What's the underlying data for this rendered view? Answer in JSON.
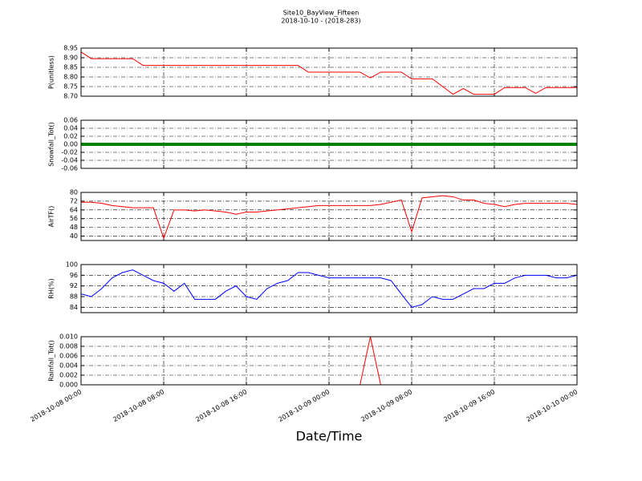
{
  "title": "Site10_BayView_Fifteen",
  "subtitle": "2018-10-10 - (2018-283)",
  "xlabel": "Date/Time",
  "chart_data": [
    {
      "type": "line",
      "ylabel": "P(unitless)",
      "color": "#ff0000",
      "grid": true,
      "xlim": [
        "2018-10-08 00:00",
        "2018-10-10 00:00"
      ],
      "xticks": [
        "2018-10-08 00:00",
        "2018-10-08 08:00",
        "2018-10-08 16:00",
        "2018-10-09 00:00",
        "2018-10-09 08:00",
        "2018-10-09 16:00",
        "2018-10-10 00:00"
      ],
      "ylim": [
        8.7,
        8.95
      ],
      "yticks": [
        {
          "value": 8.7,
          "label": "8.70"
        },
        8.75,
        {
          "value": 8.8,
          "label": "8.80"
        },
        8.85,
        {
          "value": 8.9,
          "label": "8.90"
        },
        8.95
      ],
      "x": [
        "2018-10-08 00:00",
        "2018-10-08 01:00",
        "2018-10-08 02:00",
        "2018-10-08 03:00",
        "2018-10-08 04:00",
        "2018-10-08 05:00",
        "2018-10-08 06:00",
        "2018-10-08 07:00",
        "2018-10-08 08:00",
        "2018-10-08 09:00",
        "2018-10-08 10:00",
        "2018-10-08 11:00",
        "2018-10-08 12:00",
        "2018-10-08 13:00",
        "2018-10-08 14:00",
        "2018-10-08 15:00",
        "2018-10-08 16:00",
        "2018-10-08 17:00",
        "2018-10-08 18:00",
        "2018-10-08 19:00",
        "2018-10-08 20:00",
        "2018-10-08 21:00",
        "2018-10-08 22:00",
        "2018-10-08 23:00",
        "2018-10-09 00:00",
        "2018-10-09 01:00",
        "2018-10-09 02:00",
        "2018-10-09 03:00",
        "2018-10-09 04:00",
        "2018-10-09 05:00",
        "2018-10-09 06:00",
        "2018-10-09 07:00",
        "2018-10-09 08:00",
        "2018-10-09 09:00",
        "2018-10-09 10:00",
        "2018-10-09 11:00",
        "2018-10-09 12:00",
        "2018-10-09 13:00",
        "2018-10-09 14:00",
        "2018-10-09 15:00",
        "2018-10-09 16:00",
        "2018-10-09 17:00",
        "2018-10-09 18:00",
        "2018-10-09 19:00",
        "2018-10-09 20:00",
        "2018-10-09 21:00",
        "2018-10-09 22:00",
        "2018-10-09 23:00",
        "2018-10-10 00:00"
      ],
      "values": [
        8.93,
        8.895,
        8.895,
        8.895,
        8.895,
        8.895,
        8.86,
        8.86,
        8.86,
        8.86,
        8.86,
        8.86,
        8.86,
        8.86,
        8.86,
        8.86,
        8.86,
        8.86,
        8.86,
        8.86,
        8.86,
        8.86,
        8.825,
        8.825,
        8.825,
        8.825,
        8.825,
        8.825,
        8.795,
        8.825,
        8.825,
        8.825,
        8.79,
        8.79,
        8.79,
        8.75,
        8.71,
        8.74,
        8.71,
        8.71,
        8.71,
        8.745,
        8.745,
        8.745,
        8.715,
        8.745,
        8.745,
        8.745,
        8.745
      ]
    },
    {
      "type": "line",
      "ylabel": "Snowfall_Tot()",
      "color": "#008000",
      "grid": true,
      "xlim": [
        "2018-10-08 00:00",
        "2018-10-10 00:00"
      ],
      "xticks": [
        "2018-10-08 00:00",
        "2018-10-08 08:00",
        "2018-10-08 16:00",
        "2018-10-09 00:00",
        "2018-10-09 08:00",
        "2018-10-09 16:00",
        "2018-10-10 00:00"
      ],
      "ylim": [
        -0.06,
        0.06
      ],
      "yticks": [
        -0.06,
        -0.04,
        -0.02,
        {
          "value": 0,
          "label": "0.00"
        },
        0.02,
        0.04,
        0.06
      ],
      "x": [
        "2018-10-08 00:00",
        "2018-10-08 01:00",
        "2018-10-08 02:00",
        "2018-10-08 03:00",
        "2018-10-08 04:00",
        "2018-10-08 05:00",
        "2018-10-08 06:00",
        "2018-10-08 07:00",
        "2018-10-08 08:00",
        "2018-10-08 09:00",
        "2018-10-08 10:00",
        "2018-10-08 11:00",
        "2018-10-08 12:00",
        "2018-10-08 13:00",
        "2018-10-08 14:00",
        "2018-10-08 15:00",
        "2018-10-08 16:00",
        "2018-10-08 17:00",
        "2018-10-08 18:00",
        "2018-10-08 19:00",
        "2018-10-08 20:00",
        "2018-10-08 21:00",
        "2018-10-08 22:00",
        "2018-10-08 23:00",
        "2018-10-09 00:00",
        "2018-10-09 01:00",
        "2018-10-09 02:00",
        "2018-10-09 03:00",
        "2018-10-09 04:00",
        "2018-10-09 05:00",
        "2018-10-09 06:00",
        "2018-10-09 07:00",
        "2018-10-09 08:00",
        "2018-10-09 09:00",
        "2018-10-09 10:00",
        "2018-10-09 11:00",
        "2018-10-09 12:00",
        "2018-10-09 13:00",
        "2018-10-09 14:00",
        "2018-10-09 15:00",
        "2018-10-09 16:00",
        "2018-10-09 17:00",
        "2018-10-09 18:00",
        "2018-10-09 19:00",
        "2018-10-09 20:00",
        "2018-10-09 21:00",
        "2018-10-09 22:00",
        "2018-10-09 23:00",
        "2018-10-10 00:00"
      ],
      "values": [
        0,
        0,
        0,
        0,
        0,
        0,
        0,
        0,
        0,
        0,
        0,
        0,
        0,
        0,
        0,
        0,
        0,
        0,
        0,
        0,
        0,
        0,
        0,
        0,
        0,
        0,
        0,
        0,
        0,
        0,
        0,
        0,
        0,
        0,
        0,
        0,
        0,
        0,
        0,
        0,
        0,
        0,
        0,
        0,
        0,
        0,
        0,
        0,
        0
      ]
    },
    {
      "type": "line",
      "ylabel": "AirTF()",
      "color": "#ff0000",
      "grid": true,
      "xlim": [
        "2018-10-08 00:00",
        "2018-10-10 00:00"
      ],
      "xticks": [
        "2018-10-08 00:00",
        "2018-10-08 08:00",
        "2018-10-08 16:00",
        "2018-10-09 00:00",
        "2018-10-09 08:00",
        "2018-10-09 16:00",
        "2018-10-10 00:00"
      ],
      "ylim": [
        36,
        80
      ],
      "yticks": [
        40,
        48,
        56,
        64,
        72,
        80
      ],
      "x": [
        "2018-10-08 00:00",
        "2018-10-08 01:00",
        "2018-10-08 02:00",
        "2018-10-08 03:00",
        "2018-10-08 04:00",
        "2018-10-08 05:00",
        "2018-10-08 06:00",
        "2018-10-08 07:00",
        "2018-10-08 08:00",
        "2018-10-08 09:00",
        "2018-10-08 10:00",
        "2018-10-08 11:00",
        "2018-10-08 12:00",
        "2018-10-08 13:00",
        "2018-10-08 14:00",
        "2018-10-08 15:00",
        "2018-10-08 16:00",
        "2018-10-08 17:00",
        "2018-10-08 18:00",
        "2018-10-08 19:00",
        "2018-10-08 20:00",
        "2018-10-08 21:00",
        "2018-10-08 22:00",
        "2018-10-08 23:00",
        "2018-10-09 00:00",
        "2018-10-09 01:00",
        "2018-10-09 02:00",
        "2018-10-09 03:00",
        "2018-10-09 04:00",
        "2018-10-09 05:00",
        "2018-10-09 06:00",
        "2018-10-09 07:00",
        "2018-10-09 08:00",
        "2018-10-09 09:00",
        "2018-10-09 10:00",
        "2018-10-09 11:00",
        "2018-10-09 12:00",
        "2018-10-09 13:00",
        "2018-10-09 14:00",
        "2018-10-09 15:00",
        "2018-10-09 16:00",
        "2018-10-09 17:00",
        "2018-10-09 18:00",
        "2018-10-09 19:00",
        "2018-10-09 20:00",
        "2018-10-09 21:00",
        "2018-10-09 22:00",
        "2018-10-09 23:00",
        "2018-10-10 00:00"
      ],
      "values": [
        71,
        71,
        70,
        68,
        67,
        66,
        66,
        66,
        38,
        64,
        64,
        63,
        64,
        63,
        62,
        60,
        62,
        62,
        63,
        64,
        65,
        66,
        67,
        68,
        68,
        68,
        68,
        68,
        68,
        69,
        71,
        73,
        44,
        75,
        76,
        77,
        76,
        73,
        73,
        70,
        69,
        67,
        69,
        70,
        70,
        70,
        70,
        70,
        69
      ]
    },
    {
      "type": "line",
      "ylabel": "RH(%)",
      "color": "#0000ff",
      "grid": true,
      "xlim": [
        "2018-10-08 00:00",
        "2018-10-10 00:00"
      ],
      "xticks": [
        "2018-10-08 00:00",
        "2018-10-08 08:00",
        "2018-10-08 16:00",
        "2018-10-09 00:00",
        "2018-10-09 08:00",
        "2018-10-09 16:00",
        "2018-10-10 00:00"
      ],
      "ylim": [
        82,
        100
      ],
      "yticks": [
        84,
        88,
        92,
        96,
        100
      ],
      "x": [
        "2018-10-08 00:00",
        "2018-10-08 01:00",
        "2018-10-08 02:00",
        "2018-10-08 03:00",
        "2018-10-08 04:00",
        "2018-10-08 05:00",
        "2018-10-08 06:00",
        "2018-10-08 07:00",
        "2018-10-08 08:00",
        "2018-10-08 09:00",
        "2018-10-08 10:00",
        "2018-10-08 11:00",
        "2018-10-08 12:00",
        "2018-10-08 13:00",
        "2018-10-08 14:00",
        "2018-10-08 15:00",
        "2018-10-08 16:00",
        "2018-10-08 17:00",
        "2018-10-08 18:00",
        "2018-10-08 19:00",
        "2018-10-08 20:00",
        "2018-10-08 21:00",
        "2018-10-08 22:00",
        "2018-10-08 23:00",
        "2018-10-09 00:00",
        "2018-10-09 01:00",
        "2018-10-09 02:00",
        "2018-10-09 03:00",
        "2018-10-09 04:00",
        "2018-10-09 05:00",
        "2018-10-09 06:00",
        "2018-10-09 07:00",
        "2018-10-09 08:00",
        "2018-10-09 09:00",
        "2018-10-09 10:00",
        "2018-10-09 11:00",
        "2018-10-09 12:00",
        "2018-10-09 13:00",
        "2018-10-09 14:00",
        "2018-10-09 15:00",
        "2018-10-09 16:00",
        "2018-10-09 17:00",
        "2018-10-09 18:00",
        "2018-10-09 19:00",
        "2018-10-09 20:00",
        "2018-10-09 21:00",
        "2018-10-09 22:00",
        "2018-10-09 23:00",
        "2018-10-10 00:00"
      ],
      "values": [
        89,
        88,
        91,
        95,
        97,
        98,
        96,
        94,
        93,
        90,
        93,
        87,
        87,
        87,
        90,
        92,
        88,
        87,
        91,
        93,
        94,
        97,
        97,
        96,
        95,
        95,
        95,
        95,
        95,
        95,
        94,
        89,
        84,
        85,
        88,
        87,
        87,
        89,
        91,
        91,
        93,
        93,
        95,
        96,
        96,
        96,
        95,
        95,
        96
      ]
    },
    {
      "type": "line",
      "ylabel": "Rainfall_Tot()",
      "color": "#ff0000",
      "grid": true,
      "xlim": [
        "2018-10-08 00:00",
        "2018-10-10 00:00"
      ],
      "xticks": [
        "2018-10-08 00:00",
        "2018-10-08 08:00",
        "2018-10-08 16:00",
        "2018-10-09 00:00",
        "2018-10-09 08:00",
        "2018-10-09 16:00",
        "2018-10-10 00:00"
      ],
      "ylim": [
        0,
        0.01
      ],
      "yticks": [
        {
          "value": 0,
          "label": "0.000"
        },
        0.002,
        0.004,
        0.006,
        0.008,
        {
          "value": 0.01,
          "label": "0.010"
        }
      ],
      "x": [
        "2018-10-08 00:00",
        "2018-10-08 01:00",
        "2018-10-08 02:00",
        "2018-10-08 03:00",
        "2018-10-08 04:00",
        "2018-10-08 05:00",
        "2018-10-08 06:00",
        "2018-10-08 07:00",
        "2018-10-08 08:00",
        "2018-10-08 09:00",
        "2018-10-08 10:00",
        "2018-10-08 11:00",
        "2018-10-08 12:00",
        "2018-10-08 13:00",
        "2018-10-08 14:00",
        "2018-10-08 15:00",
        "2018-10-08 16:00",
        "2018-10-08 17:00",
        "2018-10-08 18:00",
        "2018-10-08 19:00",
        "2018-10-08 20:00",
        "2018-10-08 21:00",
        "2018-10-08 22:00",
        "2018-10-08 23:00",
        "2018-10-09 00:00",
        "2018-10-09 01:00",
        "2018-10-09 02:00",
        "2018-10-09 03:00",
        "2018-10-09 04:00",
        "2018-10-09 05:00",
        "2018-10-09 06:00",
        "2018-10-09 07:00",
        "2018-10-09 08:00",
        "2018-10-09 09:00",
        "2018-10-09 10:00",
        "2018-10-09 11:00",
        "2018-10-09 12:00",
        "2018-10-09 13:00",
        "2018-10-09 14:00",
        "2018-10-09 15:00",
        "2018-10-09 16:00",
        "2018-10-09 17:00",
        "2018-10-09 18:00",
        "2018-10-09 19:00",
        "2018-10-09 20:00",
        "2018-10-09 21:00",
        "2018-10-09 22:00",
        "2018-10-09 23:00",
        "2018-10-10 00:00"
      ],
      "values": [
        0,
        0,
        0,
        0,
        0,
        0,
        0,
        0,
        0,
        0,
        0,
        0,
        0,
        0,
        0,
        0,
        0,
        0,
        0,
        0,
        0,
        0,
        0,
        0,
        0,
        0,
        0,
        0,
        0.01,
        0,
        0,
        0,
        0,
        0,
        0,
        0,
        0,
        0,
        0,
        0,
        0,
        0,
        0,
        0,
        0,
        0,
        0,
        0,
        0
      ]
    }
  ]
}
